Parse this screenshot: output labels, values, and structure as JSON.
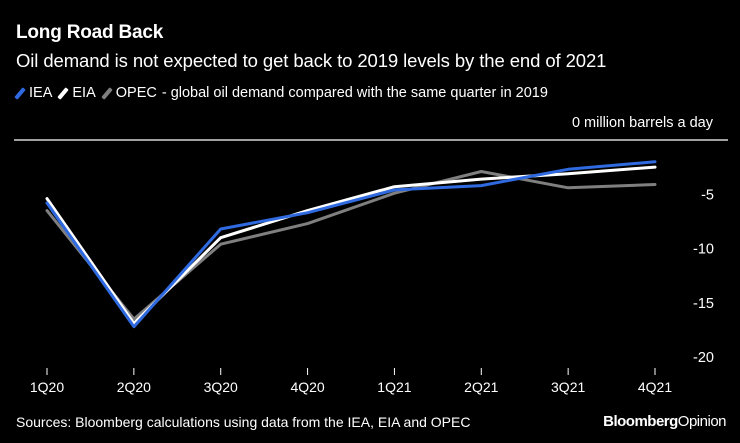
{
  "chart_data": {
    "type": "line",
    "title": "Long Road Back",
    "subtitle": "Oil demand is not expected to get back to 2019 levels by the end of 2021",
    "legend_suffix": "- global oil demand compared with the same quarter in 2019",
    "unit_label": "0 million barrels a day",
    "categories": [
      "1Q20",
      "2Q20",
      "3Q20",
      "4Q20",
      "1Q21",
      "2Q21",
      "3Q21",
      "4Q21"
    ],
    "ylim": [
      -21,
      0
    ],
    "yticks": [
      {
        "value": -5,
        "label": "-5"
      },
      {
        "value": -10,
        "label": "-10"
      },
      {
        "value": -15,
        "label": "-15"
      },
      {
        "value": -20,
        "label": "-20"
      }
    ],
    "series": [
      {
        "name": "OPEC",
        "color": "#7f7f7f",
        "values": [
          -6.5,
          -16.5,
          -9.6,
          -7.7,
          -4.9,
          -2.9,
          -4.4,
          -4.1
        ]
      },
      {
        "name": "EIA",
        "color": "#ffffff",
        "values": [
          -5.4,
          -16.9,
          -9.0,
          -6.5,
          -4.3,
          -3.6,
          -3.1,
          -2.5
        ]
      },
      {
        "name": "IEA",
        "color": "#2f6ae0",
        "values": [
          -5.8,
          -17.2,
          -8.2,
          -6.7,
          -4.6,
          -4.2,
          -2.7,
          -2.0
        ]
      }
    ],
    "legend_order": [
      "IEA",
      "EIA",
      "OPEC"
    ]
  },
  "footer": {
    "source": "Sources: Bloomberg calculations using data from the IEA, EIA and OPEC",
    "brand_main": "Bloomberg",
    "brand_sub": "Opinion"
  }
}
